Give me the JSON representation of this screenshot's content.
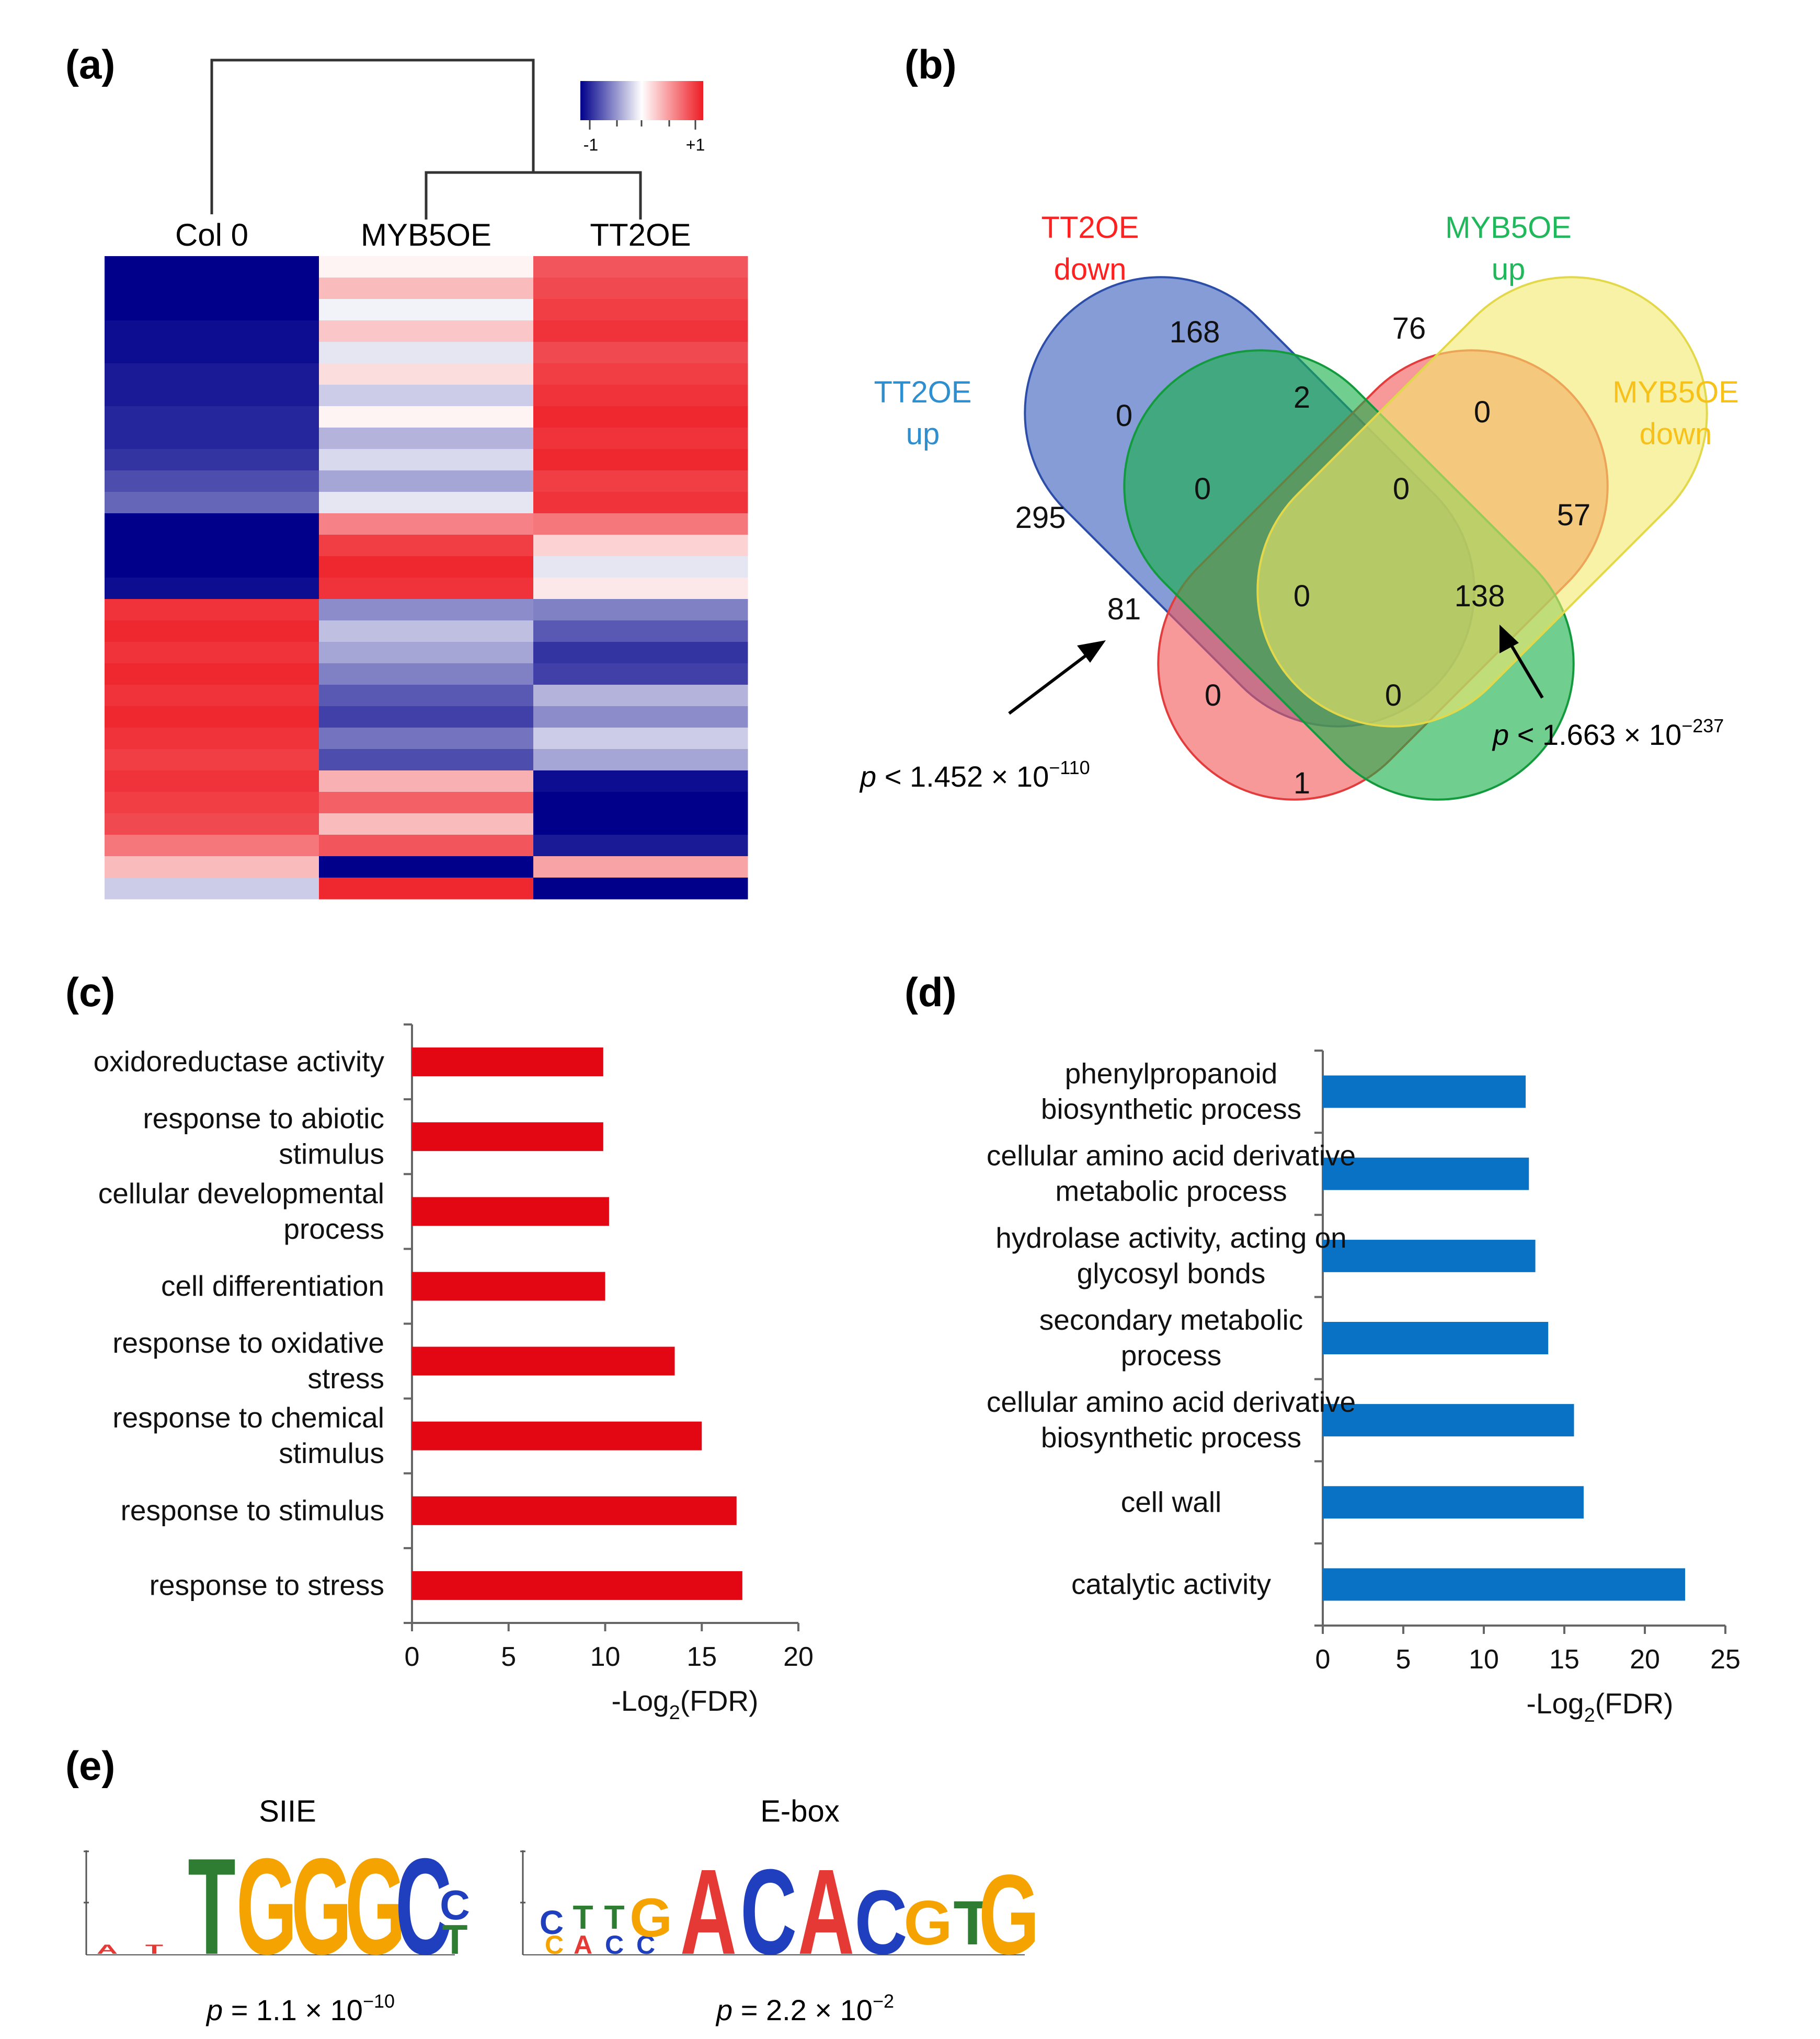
{
  "panels": {
    "a": "(a)",
    "b": "(b)",
    "c": "(c)",
    "d": "(d)",
    "e": "(e)"
  },
  "colors": {
    "heat_low": "#00008b",
    "heat_mid": "#ffffff",
    "heat_high": "#ee1c24",
    "bar_c": "#e30613",
    "bar_d": "#0a72c4",
    "venn_tt2_up": "#3a5fbf",
    "venn_tt2_down": "#f25a5a",
    "venn_myb5_up": "#19b04a",
    "venn_myb5_down": "#f3e96a",
    "tt2_label": "#2e8fd0",
    "tt2_down_label": "#ff2020",
    "myb5_up_label": "#1fb85a",
    "myb5_down_label": "#f7c11a"
  },
  "heatmap": {
    "legend": {
      "min_label": "-1",
      "max_label": "+1"
    },
    "columns": [
      "Col 0",
      "MYB5OE",
      "TT2OE"
    ],
    "row_values": [
      [
        -1.0,
        0.05,
        0.75
      ],
      [
        -1.0,
        0.3,
        0.8
      ],
      [
        -1.0,
        -0.05,
        0.85
      ],
      [
        -0.95,
        0.25,
        0.9
      ],
      [
        -0.95,
        -0.1,
        0.8
      ],
      [
        -0.9,
        0.15,
        0.85
      ],
      [
        -0.9,
        -0.2,
        0.9
      ],
      [
        -0.85,
        0.05,
        0.95
      ],
      [
        -0.85,
        -0.3,
        0.9
      ],
      [
        -0.8,
        -0.15,
        0.95
      ],
      [
        -0.7,
        -0.35,
        0.85
      ],
      [
        -0.6,
        -0.1,
        0.9
      ],
      [
        -1.0,
        0.55,
        0.6
      ],
      [
        -1.0,
        0.85,
        0.2
      ],
      [
        -1.0,
        0.95,
        -0.1
      ],
      [
        -0.95,
        0.9,
        0.1
      ],
      [
        0.9,
        -0.45,
        -0.5
      ],
      [
        0.95,
        -0.25,
        -0.65
      ],
      [
        0.9,
        -0.35,
        -0.8
      ],
      [
        0.95,
        -0.5,
        -0.75
      ],
      [
        0.9,
        -0.65,
        -0.3
      ],
      [
        0.95,
        -0.75,
        -0.45
      ],
      [
        0.9,
        -0.55,
        -0.2
      ],
      [
        0.85,
        -0.7,
        -0.35
      ],
      [
        0.9,
        0.35,
        -0.95
      ],
      [
        0.85,
        0.7,
        -1.0
      ],
      [
        0.8,
        0.3,
        -1.0
      ],
      [
        0.6,
        0.75,
        -0.9
      ],
      [
        0.3,
        -1.0,
        0.4
      ],
      [
        -0.2,
        0.95,
        -1.0
      ]
    ]
  },
  "venn": {
    "set_labels": {
      "tt2_up": [
        "TT2OE",
        "up"
      ],
      "tt2_down": [
        "TT2OE",
        "down"
      ],
      "myb5_up": [
        "MYB5OE",
        "up"
      ],
      "myb5_down": [
        "MYB5OE",
        "down"
      ]
    },
    "counts": {
      "tt2_up_only": "295",
      "tt2_down_only": "168",
      "myb5_up_only": "76",
      "myb5_down_only": "57",
      "tt2up_tt2down": "0",
      "tt2down_myb5up": "2",
      "myb5up_myb5down": "0",
      "tt2up_tt2down_myb5up": "0",
      "tt2down_myb5up_myb5down": "0",
      "tt2up_myb5up": "81",
      "tt2down_myb5down": "138",
      "all_four": "0",
      "tt2up_myb5up_myb5down": "0",
      "tt2up_tt2down_myb5down": "0",
      "tt2up_myb5down": "1"
    },
    "pvalues": {
      "left": {
        "p": "p",
        "rest": " < 1.452 × 10",
        "exp": "−110"
      },
      "right": {
        "p": "p",
        "rest": " < 1.663 × 10",
        "exp": "−237"
      }
    }
  },
  "chart_data": [
    {
      "type": "bar",
      "orientation": "horizontal",
      "panel": "c",
      "categories": [
        [
          "oxidoreductase activity"
        ],
        [
          "response to abiotic",
          "stimulus"
        ],
        [
          "cellular developmental",
          "process"
        ],
        [
          "cell differentiation"
        ],
        [
          "response to oxidative",
          "stress"
        ],
        [
          "response to chemical",
          "stimulus"
        ],
        [
          "response to stimulus"
        ],
        [
          "response to stress"
        ]
      ],
      "values": [
        9.9,
        9.9,
        10.2,
        10.0,
        13.6,
        15.0,
        16.8,
        17.1
      ],
      "xlim": [
        0,
        20
      ],
      "ticks": [
        0,
        5,
        10,
        15,
        20
      ],
      "xlabel": {
        "main": "-Log",
        "sub": "2",
        "tail": "(FDR)"
      }
    },
    {
      "type": "bar",
      "orientation": "horizontal",
      "panel": "d",
      "categories": [
        [
          "phenylpropanoid",
          "biosynthetic process"
        ],
        [
          "cellular amino acid derivative",
          "metabolic process"
        ],
        [
          "hydrolase activity, acting on",
          "glycosyl bonds"
        ],
        [
          "secondary metabolic",
          "process"
        ],
        [
          "cellular amino acid derivative",
          "biosynthetic process"
        ],
        [
          "cell wall"
        ],
        [
          "catalytic activity"
        ]
      ],
      "values": [
        12.6,
        12.8,
        13.2,
        14.0,
        15.6,
        16.2,
        22.5
      ],
      "xlim": [
        0,
        25
      ],
      "ticks": [
        0,
        5,
        10,
        15,
        20,
        25
      ],
      "xlabel": {
        "main": "-Log",
        "sub": "2",
        "tail": "(FDR)"
      }
    }
  ],
  "motifs": [
    {
      "name": "SIIE",
      "small_letters": [
        "A",
        "T"
      ],
      "big_letters": [
        "T",
        "G",
        "G",
        "G",
        "C"
      ],
      "stack_letters": [
        "C",
        "T"
      ],
      "pvalue": {
        "p": "p",
        "rest": " = 1.1 × 10",
        "exp": "−10"
      }
    },
    {
      "name": "E-box",
      "small_letters": [
        "C",
        "T",
        "T"
      ],
      "small_sub": [
        "C",
        "A",
        "C",
        "C"
      ],
      "big_letters": [
        "G",
        "A",
        "C",
        "A",
        "C",
        "G",
        "T",
        "G"
      ],
      "pvalue": {
        "p": "p",
        "rest": " = 2.2 × 10",
        "exp": "−2"
      }
    }
  ]
}
